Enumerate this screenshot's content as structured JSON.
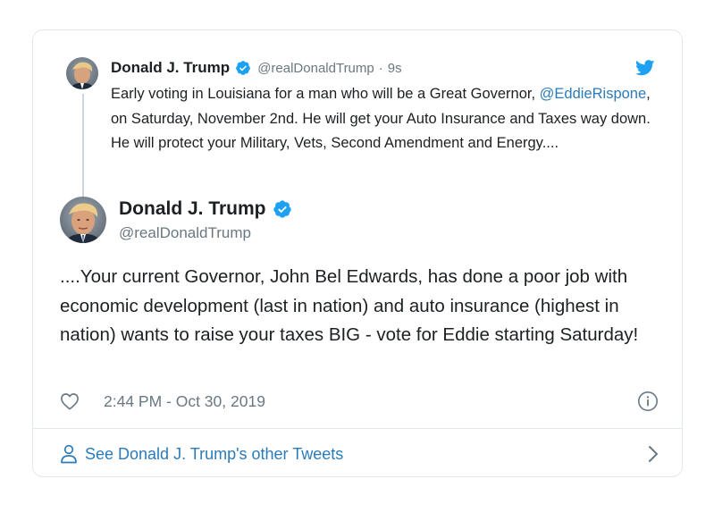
{
  "parent_tweet": {
    "author_name": "Donald J. Trump",
    "handle": "@realDonaldTrump",
    "separator": "·",
    "relative_time": "9s",
    "text_before_mention": "Early voting in Louisiana for a man who will be a Great Governor, ",
    "mention": "@EddieRispone",
    "text_after_mention": ", on Saturday, November 2nd. He will get your Auto Insurance and Taxes way down. He will protect your Military, Vets, Second Amendment and Energy...."
  },
  "main_tweet": {
    "author_name": "Donald J. Trump",
    "handle": "@realDonaldTrump",
    "text": "....Your current Governor, John Bel Edwards, has done a poor job with economic development (last in nation) and auto insurance (highest in nation) wants to raise your taxes BIG - vote for Eddie starting Saturday!",
    "timestamp": "2:44 PM - Oct 30, 2019"
  },
  "footer": {
    "see_more_label": "See Donald J. Trump's other Tweets"
  },
  "icons": {
    "verified": "verified-badge-icon",
    "bird": "twitter-bird-icon",
    "like": "heart-icon",
    "info": "info-icon",
    "person": "person-icon",
    "chevron": "chevron-right-icon"
  },
  "colors": {
    "link": "#2b7bb9",
    "verified": "#1da1f2",
    "muted_text": "#697882",
    "border": "#e1e8ed"
  }
}
